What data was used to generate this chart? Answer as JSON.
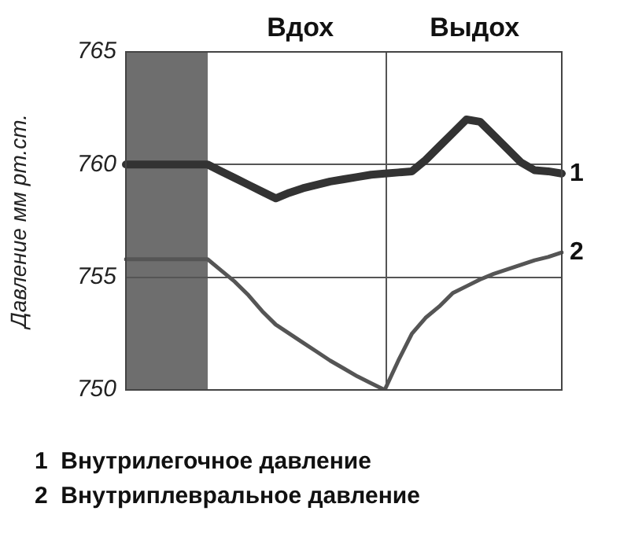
{
  "chart_data": {
    "type": "line",
    "ylabel": "Давление мм рт.ст.",
    "categories": [
      null,
      null,
      null,
      null,
      null,
      null,
      null,
      null,
      null,
      null,
      null,
      null,
      null,
      null,
      null,
      null,
      null,
      null,
      null,
      null,
      null,
      null,
      null,
      null,
      null,
      null,
      null,
      null,
      null,
      null,
      null,
      null,
      null
    ],
    "ylim": [
      750,
      765
    ],
    "yticks": [
      750,
      755,
      760,
      765
    ],
    "tick_labels": "y",
    "grid": "y",
    "legend": false,
    "marker": "none",
    "line_style": "solid",
    "series": [
      {
        "name": "1",
        "color": "#333333",
        "values": [
          760,
          760,
          760,
          760,
          760,
          760,
          760,
          759.7,
          759.4,
          759.1,
          758.8,
          758.5,
          758.75,
          758.95,
          759.1,
          759.25,
          759.35,
          759.45,
          759.55,
          759.6,
          759.65,
          759.7,
          760.2,
          760.8,
          761.4,
          762.0,
          761.9,
          761.3,
          760.7,
          760.1,
          759.75,
          759.7,
          759.6
        ]
      },
      {
        "name": "2",
        "color": "#555555",
        "values": [
          755.8,
          755.8,
          755.8,
          755.8,
          755.8,
          755.8,
          755.8,
          755.3,
          754.8,
          754.2,
          753.5,
          752.9,
          752.5,
          752.1,
          751.7,
          751.3,
          750.95,
          750.6,
          750.3,
          750.0,
          751.3,
          752.5,
          753.2,
          753.7,
          754.3,
          754.6,
          754.9,
          755.15,
          755.35,
          755.55,
          755.75,
          755.9,
          756.1
        ]
      }
    ],
    "annotations": [
      "Вдох",
      "Выдох",
      "1  Внутрилегочное давление",
      "2  Внутриплевральное давление"
    ]
  }
}
